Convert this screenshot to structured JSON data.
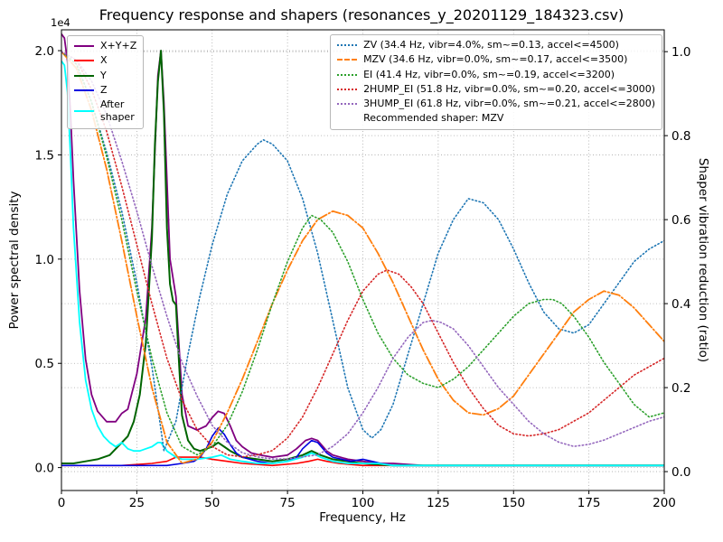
{
  "chart_data": {
    "type": "line",
    "title": "Frequency response and shapers (resonances_y_20201129_184323.csv)",
    "xlabel": "Frequency, Hz",
    "ylabel_left": "Power spectral density",
    "ylabel_right": "Shaper vibration reduction (ratio)",
    "offset_label": "1e4",
    "recommended_label": "Recommended shaper: MZV",
    "x_min": 0,
    "x_max": 200,
    "x_ticks": [
      0,
      25,
      50,
      75,
      100,
      125,
      150,
      175,
      200
    ],
    "y_left_min": -0.11,
    "y_left_max": 2.1,
    "y_left_ticks": [
      0.0,
      0.5,
      1.0,
      1.5,
      2.0
    ],
    "y_left_tick_labels": [
      "0.0",
      "0.5",
      "1.0",
      "1.5",
      "2.0"
    ],
    "y_right_min": -0.045,
    "y_right_max": 1.052,
    "y_right_ticks": [
      0.0,
      0.2,
      0.4,
      0.6,
      0.8,
      1.0
    ],
    "y_right_tick_labels": [
      "0.0",
      "0.2",
      "0.4",
      "0.6",
      "0.8",
      "1.0"
    ],
    "grid_color": "#a8a8a8",
    "psd_series": [
      {
        "name": "X+Y+Z",
        "color": "#800080",
        "dash": "solid",
        "width": 1.8,
        "x": [
          0,
          1,
          2,
          3,
          4,
          6,
          8,
          10,
          12,
          15,
          18,
          20,
          22,
          25,
          28,
          30,
          32,
          33,
          34,
          36,
          38,
          40,
          42,
          45,
          48,
          50,
          52,
          54,
          56,
          58,
          60,
          63,
          66,
          70,
          75,
          78,
          81,
          83,
          85,
          88,
          90,
          95,
          100,
          105,
          110,
          120,
          140,
          160,
          180,
          200
        ],
        "y": [
          2.08,
          2.06,
          1.95,
          1.7,
          1.38,
          0.85,
          0.52,
          0.35,
          0.27,
          0.22,
          0.22,
          0.26,
          0.28,
          0.45,
          0.72,
          1.15,
          1.88,
          2.0,
          1.75,
          1.0,
          0.82,
          0.35,
          0.2,
          0.18,
          0.2,
          0.24,
          0.27,
          0.26,
          0.2,
          0.13,
          0.1,
          0.07,
          0.06,
          0.05,
          0.06,
          0.09,
          0.13,
          0.14,
          0.13,
          0.08,
          0.06,
          0.04,
          0.03,
          0.02,
          0.02,
          0.01,
          0.01,
          0.01,
          0.01,
          0.01
        ]
      },
      {
        "name": "X",
        "color": "#ff0000",
        "dash": "solid",
        "width": 1.6,
        "x": [
          0,
          10,
          20,
          30,
          35,
          38,
          40,
          43,
          46,
          50,
          55,
          60,
          70,
          78,
          82,
          85,
          88,
          92,
          100,
          110,
          130,
          160,
          200
        ],
        "y": [
          0.01,
          0.01,
          0.01,
          0.02,
          0.03,
          0.05,
          0.05,
          0.05,
          0.05,
          0.04,
          0.03,
          0.02,
          0.01,
          0.02,
          0.03,
          0.04,
          0.03,
          0.02,
          0.01,
          0.01,
          0.01,
          0.01,
          0.01
        ]
      },
      {
        "name": "Y",
        "color": "#006400",
        "dash": "solid",
        "width": 2.0,
        "x": [
          0,
          4,
          8,
          12,
          16,
          20,
          22,
          24,
          26,
          28,
          30,
          31,
          32,
          33,
          34,
          35,
          36,
          37,
          38,
          39,
          40,
          42,
          44,
          46,
          48,
          50,
          52,
          54,
          56,
          60,
          65,
          70,
          75,
          80,
          83,
          86,
          90,
          95,
          100,
          110,
          120,
          140,
          160,
          180,
          200
        ],
        "y": [
          0.02,
          0.02,
          0.03,
          0.04,
          0.06,
          0.12,
          0.15,
          0.22,
          0.35,
          0.6,
          1.1,
          1.55,
          1.85,
          2.0,
          1.7,
          1.15,
          0.88,
          0.8,
          0.78,
          0.5,
          0.25,
          0.13,
          0.09,
          0.08,
          0.09,
          0.1,
          0.12,
          0.1,
          0.08,
          0.05,
          0.04,
          0.03,
          0.04,
          0.06,
          0.08,
          0.06,
          0.04,
          0.03,
          0.02,
          0.01,
          0.01,
          0.01,
          0.01,
          0.01,
          0.01
        ]
      },
      {
        "name": "Z",
        "color": "#0000e0",
        "dash": "solid",
        "width": 1.6,
        "x": [
          0,
          20,
          35,
          40,
          44,
          46,
          48,
          50,
          52,
          54,
          56,
          58,
          60,
          65,
          70,
          75,
          78,
          80,
          83,
          85,
          88,
          90,
          93,
          96,
          100,
          103,
          106,
          110,
          120,
          140,
          160,
          200
        ],
        "y": [
          0.01,
          0.01,
          0.01,
          0.02,
          0.03,
          0.05,
          0.09,
          0.15,
          0.19,
          0.16,
          0.11,
          0.07,
          0.05,
          0.03,
          0.02,
          0.03,
          0.05,
          0.09,
          0.13,
          0.12,
          0.07,
          0.05,
          0.04,
          0.03,
          0.04,
          0.03,
          0.02,
          0.01,
          0.01,
          0.01,
          0.01,
          0.01
        ]
      },
      {
        "name": "After\nshaper",
        "color": "#00ffff",
        "dash": "solid",
        "width": 1.8,
        "x": [
          0,
          1,
          2,
          3,
          4,
          6,
          8,
          10,
          12,
          14,
          16,
          18,
          20,
          22,
          24,
          26,
          28,
          30,
          32,
          33,
          35,
          38,
          40,
          45,
          50,
          53,
          56,
          60,
          65,
          70,
          75,
          80,
          83,
          86,
          90,
          95,
          100,
          105,
          110,
          120,
          140,
          160,
          180,
          200
        ],
        "y": [
          1.95,
          1.93,
          1.8,
          1.5,
          1.15,
          0.7,
          0.42,
          0.28,
          0.2,
          0.15,
          0.12,
          0.1,
          0.12,
          0.09,
          0.08,
          0.08,
          0.09,
          0.1,
          0.12,
          0.12,
          0.08,
          0.05,
          0.04,
          0.04,
          0.05,
          0.06,
          0.04,
          0.03,
          0.02,
          0.02,
          0.03,
          0.05,
          0.07,
          0.05,
          0.03,
          0.02,
          0.02,
          0.02,
          0.01,
          0.01,
          0.01,
          0.01,
          0.01,
          0.01
        ]
      }
    ],
    "shaper_series": [
      {
        "name": "ZV (34.4 Hz, vibr=4.0%, sm~=0.13, accel<=4500)",
        "color": "#1f77b4",
        "dash": "dotted",
        "width": 1.6,
        "x": [
          0,
          5,
          10,
          15,
          20,
          25,
          30,
          34,
          38,
          42,
          46,
          50,
          55,
          60,
          65,
          67,
          70,
          75,
          80,
          85,
          90,
          95,
          100,
          103,
          106,
          110,
          115,
          120,
          125,
          130,
          135,
          140,
          145,
          150,
          155,
          160,
          165,
          170,
          175,
          180,
          185,
          190,
          195,
          200
        ],
        "y": [
          1.0,
          0.97,
          0.88,
          0.76,
          0.62,
          0.45,
          0.25,
          0.05,
          0.12,
          0.28,
          0.42,
          0.54,
          0.66,
          0.74,
          0.78,
          0.79,
          0.78,
          0.74,
          0.65,
          0.52,
          0.36,
          0.2,
          0.1,
          0.08,
          0.1,
          0.16,
          0.28,
          0.4,
          0.52,
          0.6,
          0.65,
          0.64,
          0.6,
          0.53,
          0.45,
          0.38,
          0.34,
          0.33,
          0.35,
          0.4,
          0.45,
          0.5,
          0.53,
          0.55
        ]
      },
      {
        "name": "MZV (34.6 Hz, vibr=0.0%, sm~=0.17, accel<=3500)",
        "color": "#ff7f0e",
        "dash": "dashdot",
        "width": 1.8,
        "x": [
          0,
          5,
          10,
          15,
          20,
          25,
          30,
          35,
          40,
          45,
          50,
          55,
          60,
          65,
          70,
          75,
          80,
          85,
          90,
          95,
          100,
          105,
          110,
          115,
          120,
          125,
          130,
          135,
          140,
          145,
          150,
          155,
          160,
          165,
          170,
          175,
          180,
          185,
          190,
          195,
          200
        ],
        "y": [
          1.0,
          0.96,
          0.86,
          0.72,
          0.55,
          0.37,
          0.2,
          0.07,
          0.02,
          0.03,
          0.07,
          0.14,
          0.22,
          0.31,
          0.4,
          0.48,
          0.55,
          0.6,
          0.62,
          0.61,
          0.58,
          0.52,
          0.45,
          0.37,
          0.29,
          0.22,
          0.17,
          0.14,
          0.135,
          0.15,
          0.18,
          0.23,
          0.28,
          0.33,
          0.38,
          0.41,
          0.43,
          0.42,
          0.39,
          0.35,
          0.31
        ]
      },
      {
        "name": "EI (41.4 Hz, vibr=0.0%, sm~=0.19, accel<=3200)",
        "color": "#2ca02c",
        "dash": "dotted",
        "width": 1.6,
        "x": [
          0,
          5,
          10,
          15,
          20,
          25,
          30,
          35,
          40,
          45,
          50,
          55,
          60,
          65,
          70,
          75,
          80,
          83,
          86,
          90,
          95,
          100,
          105,
          110,
          115,
          120,
          125,
          130,
          135,
          140,
          145,
          150,
          155,
          160,
          163,
          166,
          170,
          175,
          180,
          185,
          190,
          195,
          200
        ],
        "y": [
          1.0,
          0.97,
          0.88,
          0.75,
          0.6,
          0.43,
          0.27,
          0.14,
          0.06,
          0.04,
          0.06,
          0.11,
          0.19,
          0.29,
          0.4,
          0.5,
          0.58,
          0.61,
          0.6,
          0.57,
          0.5,
          0.41,
          0.33,
          0.27,
          0.23,
          0.21,
          0.2,
          0.22,
          0.25,
          0.29,
          0.33,
          0.37,
          0.4,
          0.41,
          0.41,
          0.4,
          0.37,
          0.32,
          0.26,
          0.21,
          0.16,
          0.13,
          0.14
        ]
      },
      {
        "name": "2HUMP_EI (51.8 Hz, vibr=0.0%, sm~=0.20, accel<=3000)",
        "color": "#d62728",
        "dash": "dotted",
        "width": 1.6,
        "x": [
          0,
          5,
          10,
          15,
          20,
          25,
          30,
          35,
          40,
          45,
          50,
          55,
          60,
          65,
          70,
          75,
          80,
          85,
          90,
          95,
          100,
          105,
          108,
          112,
          116,
          120,
          125,
          130,
          135,
          140,
          145,
          150,
          155,
          160,
          165,
          170,
          175,
          180,
          185,
          190,
          195,
          200
        ],
        "y": [
          1.0,
          0.98,
          0.91,
          0.81,
          0.68,
          0.54,
          0.4,
          0.27,
          0.17,
          0.1,
          0.06,
          0.04,
          0.035,
          0.04,
          0.05,
          0.08,
          0.13,
          0.2,
          0.28,
          0.36,
          0.43,
          0.47,
          0.48,
          0.47,
          0.44,
          0.4,
          0.33,
          0.26,
          0.2,
          0.15,
          0.11,
          0.09,
          0.085,
          0.09,
          0.1,
          0.12,
          0.14,
          0.17,
          0.2,
          0.23,
          0.25,
          0.27
        ]
      },
      {
        "name": "3HUMP_EI (61.8 Hz, vibr=0.0%, sm~=0.21, accel<=2800)",
        "color": "#9467bd",
        "dash": "dotted",
        "width": 1.6,
        "x": [
          0,
          5,
          10,
          15,
          20,
          25,
          30,
          35,
          40,
          45,
          50,
          55,
          60,
          65,
          70,
          75,
          80,
          85,
          90,
          95,
          100,
          105,
          110,
          115,
          120,
          123,
          126,
          130,
          135,
          140,
          145,
          150,
          155,
          160,
          165,
          170,
          175,
          180,
          185,
          190,
          195,
          200
        ],
        "y": [
          1.0,
          0.98,
          0.93,
          0.85,
          0.74,
          0.62,
          0.49,
          0.37,
          0.26,
          0.18,
          0.11,
          0.07,
          0.045,
          0.035,
          0.03,
          0.03,
          0.035,
          0.04,
          0.06,
          0.09,
          0.14,
          0.2,
          0.27,
          0.32,
          0.355,
          0.36,
          0.355,
          0.34,
          0.3,
          0.25,
          0.2,
          0.16,
          0.12,
          0.09,
          0.07,
          0.06,
          0.065,
          0.075,
          0.09,
          0.105,
          0.12,
          0.13
        ]
      }
    ]
  }
}
